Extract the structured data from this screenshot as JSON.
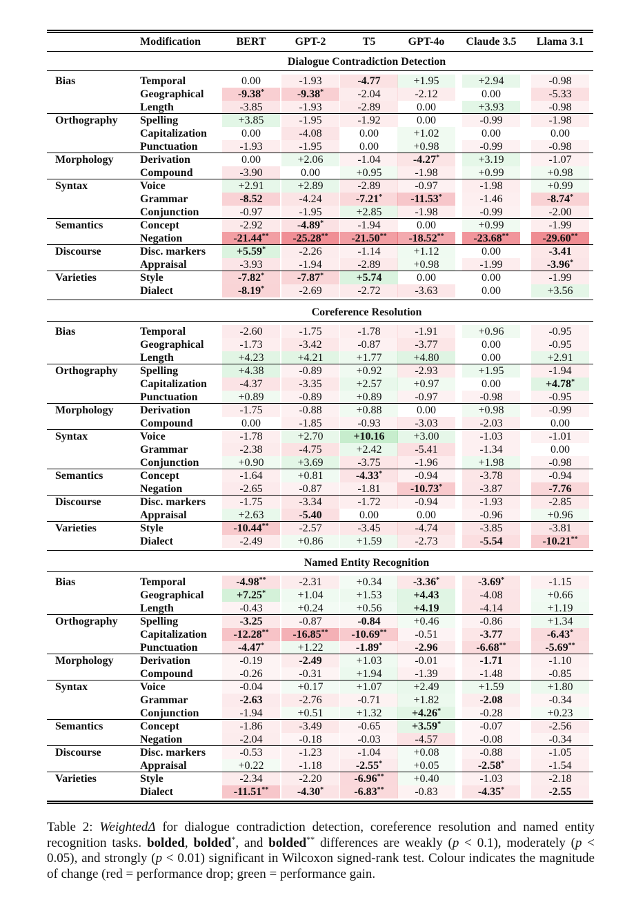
{
  "columns": {
    "modification": "Modification",
    "models": [
      "BERT",
      "GPT-2",
      "T5",
      "GPT-4o",
      "Claude 3.5",
      "Llama 3.1"
    ]
  },
  "sections": [
    {
      "title": "Dialogue Contradiction Detection",
      "rows": [
        {
          "group": "Bias",
          "mod": "Temporal",
          "cells": [
            "0.00",
            "-1.93",
            "-4.77",
            "+1.95",
            "+2.94",
            "-0.98"
          ],
          "bold": [
            0,
            0,
            1,
            0,
            0,
            0
          ]
        },
        {
          "group": "",
          "mod": "Geographical",
          "cells": [
            "-9.38*",
            "-9.38*",
            "-2.04",
            "-2.12",
            "0.00",
            "-5.33"
          ],
          "bold": [
            1,
            1,
            0,
            0,
            0,
            0
          ]
        },
        {
          "group": "",
          "mod": "Length",
          "cells": [
            "-3.85",
            "-1.93",
            "-2.89",
            "0.00",
            "+3.93",
            "-0.98"
          ],
          "bold": [
            0,
            0,
            0,
            0,
            0,
            0
          ]
        },
        {
          "group": "Orthography",
          "mod": "Spelling",
          "cells": [
            "+3.85",
            "-1.95",
            "-1.92",
            "0.00",
            "-0.99",
            "-1.98"
          ],
          "bold": [
            0,
            0,
            0,
            0,
            0,
            0
          ]
        },
        {
          "group": "",
          "mod": "Capitalization",
          "cells": [
            "0.00",
            "-4.08",
            "0.00",
            "+1.02",
            "0.00",
            "0.00"
          ],
          "bold": [
            0,
            0,
            0,
            0,
            0,
            0
          ]
        },
        {
          "group": "",
          "mod": "Punctuation",
          "cells": [
            "-1.93",
            "-1.95",
            "0.00",
            "+0.98",
            "-0.99",
            "-0.98"
          ],
          "bold": [
            0,
            0,
            0,
            0,
            0,
            0
          ]
        },
        {
          "group": "Morphology",
          "mod": "Derivation",
          "cells": [
            "0.00",
            "+2.06",
            "-1.04",
            "-4.27*",
            "+3.19",
            "-1.07"
          ],
          "bold": [
            0,
            0,
            0,
            1,
            0,
            0
          ]
        },
        {
          "group": "",
          "mod": "Compound",
          "cells": [
            "-3.90",
            "0.00",
            "+0.95",
            "-1.98",
            "+0.99",
            "+0.98"
          ],
          "bold": [
            0,
            0,
            0,
            0,
            0,
            0
          ]
        },
        {
          "group": "Syntax",
          "mod": "Voice",
          "cells": [
            "+2.91",
            "+2.89",
            "-2.89",
            "-0.97",
            "-1.98",
            "+0.99"
          ],
          "bold": [
            0,
            0,
            0,
            0,
            0,
            0
          ]
        },
        {
          "group": "",
          "mod": "Grammar",
          "cells": [
            "-8.52",
            "-4.24",
            "-7.21*",
            "-11.53*",
            "-1.46",
            "-8.74*"
          ],
          "bold": [
            1,
            0,
            1,
            1,
            0,
            1
          ]
        },
        {
          "group": "",
          "mod": "Conjunction",
          "cells": [
            "-0.97",
            "-1.95",
            "+2.85",
            "-1.98",
            "-0.99",
            "-2.00"
          ],
          "bold": [
            0,
            0,
            0,
            0,
            0,
            0
          ]
        },
        {
          "group": "Semantics",
          "mod": "Concept",
          "cells": [
            "-2.92",
            "-4.89*",
            "-1.94",
            "0.00",
            "+0.99",
            "-1.99"
          ],
          "bold": [
            0,
            1,
            0,
            0,
            0,
            0
          ]
        },
        {
          "group": "",
          "mod": "Negation",
          "cells": [
            "-21.44**",
            "-25.28**",
            "-21.50**",
            "-18.52**",
            "-23.68**",
            "-29.60**"
          ],
          "bold": [
            1,
            1,
            1,
            1,
            1,
            1
          ]
        },
        {
          "group": "Discourse",
          "mod": "Disc. markers",
          "cells": [
            "+5.59*",
            "-2.26",
            "-1.14",
            "+1.12",
            "0.00",
            "-3.41"
          ],
          "bold": [
            1,
            0,
            0,
            0,
            0,
            1
          ]
        },
        {
          "group": "",
          "mod": "Appraisal",
          "cells": [
            "-3.93",
            "-1.94",
            "-2.89",
            "+0.98",
            "-1.99",
            "-3.96*"
          ],
          "bold": [
            0,
            0,
            0,
            0,
            0,
            1
          ]
        },
        {
          "group": "Varieties",
          "mod": "Style",
          "cells": [
            "-7.82*",
            "-7.87*",
            "+5.74",
            "0.00",
            "0.00",
            "-1.99"
          ],
          "bold": [
            1,
            1,
            1,
            0,
            0,
            0
          ]
        },
        {
          "group": "",
          "mod": "Dialect",
          "cells": [
            "-8.19*",
            "-2.69",
            "-2.72",
            "-3.63",
            "0.00",
            "+3.56"
          ],
          "bold": [
            1,
            0,
            0,
            0,
            0,
            0
          ]
        }
      ]
    },
    {
      "title": "Coreference Resolution",
      "rows": [
        {
          "group": "Bias",
          "mod": "Temporal",
          "cells": [
            "-2.60",
            "-1.75",
            "-1.78",
            "-1.91",
            "+0.96",
            "-0.95"
          ],
          "bold": [
            0,
            0,
            0,
            0,
            0,
            0
          ]
        },
        {
          "group": "",
          "mod": "Geographical",
          "cells": [
            "-1.73",
            "-3.42",
            "-0.87",
            "-3.77",
            "0.00",
            "-0.95"
          ],
          "bold": [
            0,
            0,
            0,
            0,
            0,
            0
          ]
        },
        {
          "group": "",
          "mod": "Length",
          "cells": [
            "+4.23",
            "+4.21",
            "+1.77",
            "+4.80",
            "0.00",
            "+2.91"
          ],
          "bold": [
            0,
            0,
            0,
            0,
            0,
            0
          ]
        },
        {
          "group": "Orthography",
          "mod": "Spelling",
          "cells": [
            "+4.38",
            "-0.89",
            "+0.92",
            "-2.93",
            "+1.95",
            "-1.94"
          ],
          "bold": [
            0,
            0,
            0,
            0,
            0,
            0
          ]
        },
        {
          "group": "",
          "mod": "Capitalization",
          "cells": [
            "-4.37",
            "-3.35",
            "+2.57",
            "+0.97",
            "0.00",
            "+4.78*"
          ],
          "bold": [
            0,
            0,
            0,
            0,
            0,
            1
          ]
        },
        {
          "group": "",
          "mod": "Punctuation",
          "cells": [
            "+0.89",
            "-0.89",
            "+0.89",
            "-0.97",
            "-0.98",
            "-0.95"
          ],
          "bold": [
            0,
            0,
            0,
            0,
            0,
            0
          ]
        },
        {
          "group": "Morphology",
          "mod": "Derivation",
          "cells": [
            "-1.75",
            "-0.88",
            "+0.88",
            "0.00",
            "+0.98",
            "-0.99"
          ],
          "bold": [
            0,
            0,
            0,
            0,
            0,
            0
          ]
        },
        {
          "group": "",
          "mod": "Compound",
          "cells": [
            "0.00",
            "-1.85",
            "-0.93",
            "-3.03",
            "-2.03",
            "0.00"
          ],
          "bold": [
            0,
            0,
            0,
            0,
            0,
            0
          ]
        },
        {
          "group": "Syntax",
          "mod": "Voice",
          "cells": [
            "-1.78",
            "+2.70",
            "+10.16",
            "+3.00",
            "-1.03",
            "-1.01"
          ],
          "bold": [
            0,
            0,
            1,
            0,
            0,
            0
          ]
        },
        {
          "group": "",
          "mod": "Grammar",
          "cells": [
            "-2.38",
            "-4.75",
            "+2.42",
            "-5.41",
            "-1.34",
            "0.00"
          ],
          "bold": [
            0,
            0,
            0,
            0,
            0,
            0
          ]
        },
        {
          "group": "",
          "mod": "Conjunction",
          "cells": [
            "+0.90",
            "+3.69",
            "-3.75",
            "-1.96",
            "+1.98",
            "-0.98"
          ],
          "bold": [
            0,
            0,
            0,
            0,
            0,
            0
          ]
        },
        {
          "group": "Semantics",
          "mod": "Concept",
          "cells": [
            "-1.64",
            "+0.81",
            "-4.33*",
            "-0.94",
            "-3.78",
            "-0.94"
          ],
          "bold": [
            0,
            0,
            1,
            0,
            0,
            0
          ]
        },
        {
          "group": "",
          "mod": "Negation",
          "cells": [
            "-2.65",
            "-0.87",
            "-1.81",
            "-10.73*",
            "-3.87",
            "-7.76"
          ],
          "bold": [
            0,
            0,
            0,
            1,
            0,
            1
          ]
        },
        {
          "group": "Discourse",
          "mod": "Disc. markers",
          "cells": [
            "-1.75",
            "-3.34",
            "-1.72",
            "-0.94",
            "-1.93",
            "-2.85"
          ],
          "bold": [
            0,
            0,
            0,
            0,
            0,
            0
          ]
        },
        {
          "group": "",
          "mod": "Appraisal",
          "cells": [
            "+2.63",
            "-5.40",
            "0.00",
            "0.00",
            "-0.96",
            "+0.96"
          ],
          "bold": [
            0,
            1,
            0,
            0,
            0,
            0
          ]
        },
        {
          "group": "Varieties",
          "mod": "Style",
          "cells": [
            "-10.44**",
            "-2.57",
            "-3.45",
            "-4.74",
            "-3.85",
            "-3.81"
          ],
          "bold": [
            1,
            0,
            0,
            0,
            0,
            0
          ]
        },
        {
          "group": "",
          "mod": "Dialect",
          "cells": [
            "-2.49",
            "+0.86",
            "+1.59",
            "-2.73",
            "-5.54",
            "-10.21**"
          ],
          "bold": [
            0,
            0,
            0,
            0,
            1,
            1
          ]
        }
      ]
    },
    {
      "title": "Named Entity Recognition",
      "rows": [
        {
          "group": "Bias",
          "mod": "Temporal",
          "cells": [
            "-4.98**",
            "-2.31",
            "+0.34",
            "-3.36*",
            "-3.69*",
            "-1.15"
          ],
          "bold": [
            1,
            0,
            0,
            1,
            1,
            0
          ]
        },
        {
          "group": "",
          "mod": "Geographical",
          "cells": [
            "+7.25*",
            "+1.04",
            "+1.53",
            "+4.43",
            "-4.08",
            "+0.66"
          ],
          "bold": [
            1,
            0,
            0,
            1,
            0,
            0
          ]
        },
        {
          "group": "",
          "mod": "Length",
          "cells": [
            "-0.43",
            "+0.24",
            "+0.56",
            "+4.19",
            "-4.14",
            "+1.19"
          ],
          "bold": [
            0,
            0,
            0,
            1,
            0,
            0
          ]
        },
        {
          "group": "Orthography",
          "mod": "Spelling",
          "cells": [
            "-3.25",
            "-0.87",
            "-0.84",
            "+0.46",
            "-0.86",
            "+1.34"
          ],
          "bold": [
            1,
            0,
            1,
            0,
            0,
            0
          ]
        },
        {
          "group": "",
          "mod": "Capitalization",
          "cells": [
            "-12.28**",
            "-16.85**",
            "-10.69**",
            "-0.51",
            "-3.77",
            "-6.43*"
          ],
          "bold": [
            1,
            1,
            1,
            0,
            1,
            1
          ]
        },
        {
          "group": "",
          "mod": "Punctuation",
          "cells": [
            "-4.47*",
            "+1.22",
            "-1.89*",
            "-2.96",
            "-6.68**",
            "-5.69**"
          ],
          "bold": [
            1,
            0,
            1,
            1,
            1,
            1
          ]
        },
        {
          "group": "Morphology",
          "mod": "Derivation",
          "cells": [
            "-0.19",
            "-2.49",
            "+1.03",
            "-0.01",
            "-1.71",
            "-1.10"
          ],
          "bold": [
            0,
            1,
            0,
            0,
            1,
            0
          ]
        },
        {
          "group": "",
          "mod": "Compound",
          "cells": [
            "-0.26",
            "-0.31",
            "+1.94",
            "-1.39",
            "-1.48",
            "-0.85"
          ],
          "bold": [
            0,
            0,
            0,
            0,
            0,
            0
          ]
        },
        {
          "group": "Syntax",
          "mod": "Voice",
          "cells": [
            "-0.04",
            "+0.17",
            "+1.07",
            "+2.49",
            "+1.59",
            "+1.80"
          ],
          "bold": [
            0,
            0,
            0,
            0,
            0,
            0
          ]
        },
        {
          "group": "",
          "mod": "Grammar",
          "cells": [
            "-2.63",
            "-2.76",
            "-0.71",
            "+1.82",
            "-2.08",
            "-0.34"
          ],
          "bold": [
            1,
            0,
            0,
            0,
            1,
            0
          ]
        },
        {
          "group": "",
          "mod": "Conjunction",
          "cells": [
            "-1.94",
            "+0.51",
            "+1.32",
            "+4.26*",
            "-0.28",
            "+0.23"
          ],
          "bold": [
            0,
            0,
            0,
            1,
            0,
            0
          ]
        },
        {
          "group": "Semantics",
          "mod": "Concept",
          "cells": [
            "-1.86",
            "-3.49",
            "-0.65",
            "+3.59*",
            "-0.07",
            "-2.56"
          ],
          "bold": [
            0,
            0,
            0,
            1,
            0,
            0
          ]
        },
        {
          "group": "",
          "mod": "Negation",
          "cells": [
            "-2.04",
            "-0.18",
            "-0.03",
            "-4.57",
            "-0.08",
            "-0.34"
          ],
          "bold": [
            0,
            0,
            0,
            0,
            0,
            0
          ]
        },
        {
          "group": "Discourse",
          "mod": "Disc. markers",
          "cells": [
            "-0.53",
            "-1.23",
            "-1.04",
            "+0.08",
            "-0.88",
            "-1.05"
          ],
          "bold": [
            0,
            0,
            0,
            0,
            0,
            0
          ]
        },
        {
          "group": "",
          "mod": "Appraisal",
          "cells": [
            "+0.22",
            "-1.18",
            "-2.55*",
            "+0.05",
            "-2.58*",
            "-1.54"
          ],
          "bold": [
            0,
            0,
            1,
            0,
            1,
            0
          ]
        },
        {
          "group": "Varieties",
          "mod": "Style",
          "cells": [
            "-2.34",
            "-2.20",
            "-6.96**",
            "+0.40",
            "-1.03",
            "-2.18"
          ],
          "bold": [
            0,
            0,
            1,
            0,
            0,
            0
          ]
        },
        {
          "group": "",
          "mod": "Dialect",
          "cells": [
            "-11.51**",
            "-4.30*",
            "-6.83**",
            "-0.83",
            "-4.35*",
            "-2.55"
          ],
          "bold": [
            1,
            1,
            1,
            0,
            1,
            1
          ]
        }
      ]
    }
  ],
  "caption": {
    "label": "Table 2:",
    "metric": "WeightedΔ",
    "text1": " for dialogue contradiction detection, coreference resolution and named entity recognition tasks. ",
    "bolded": "bolded",
    "star1": "*",
    "star2": "**",
    "sep1": ", ",
    "sep2": ", and ",
    "text2": " differences are weakly (",
    "p1": "p",
    "t3": " < 0.1), moderately (",
    "p2": "p",
    "t4": " < 0.05), and strongly (",
    "p3": "p",
    "t5": " < 0.01) significant in Wilcoxon signed-rank test. Colour indicates the magnitude of change (red = performance drop; green = performance gain."
  },
  "colors": {
    "drop": "#e8555f",
    "gain": "#44c25a"
  }
}
